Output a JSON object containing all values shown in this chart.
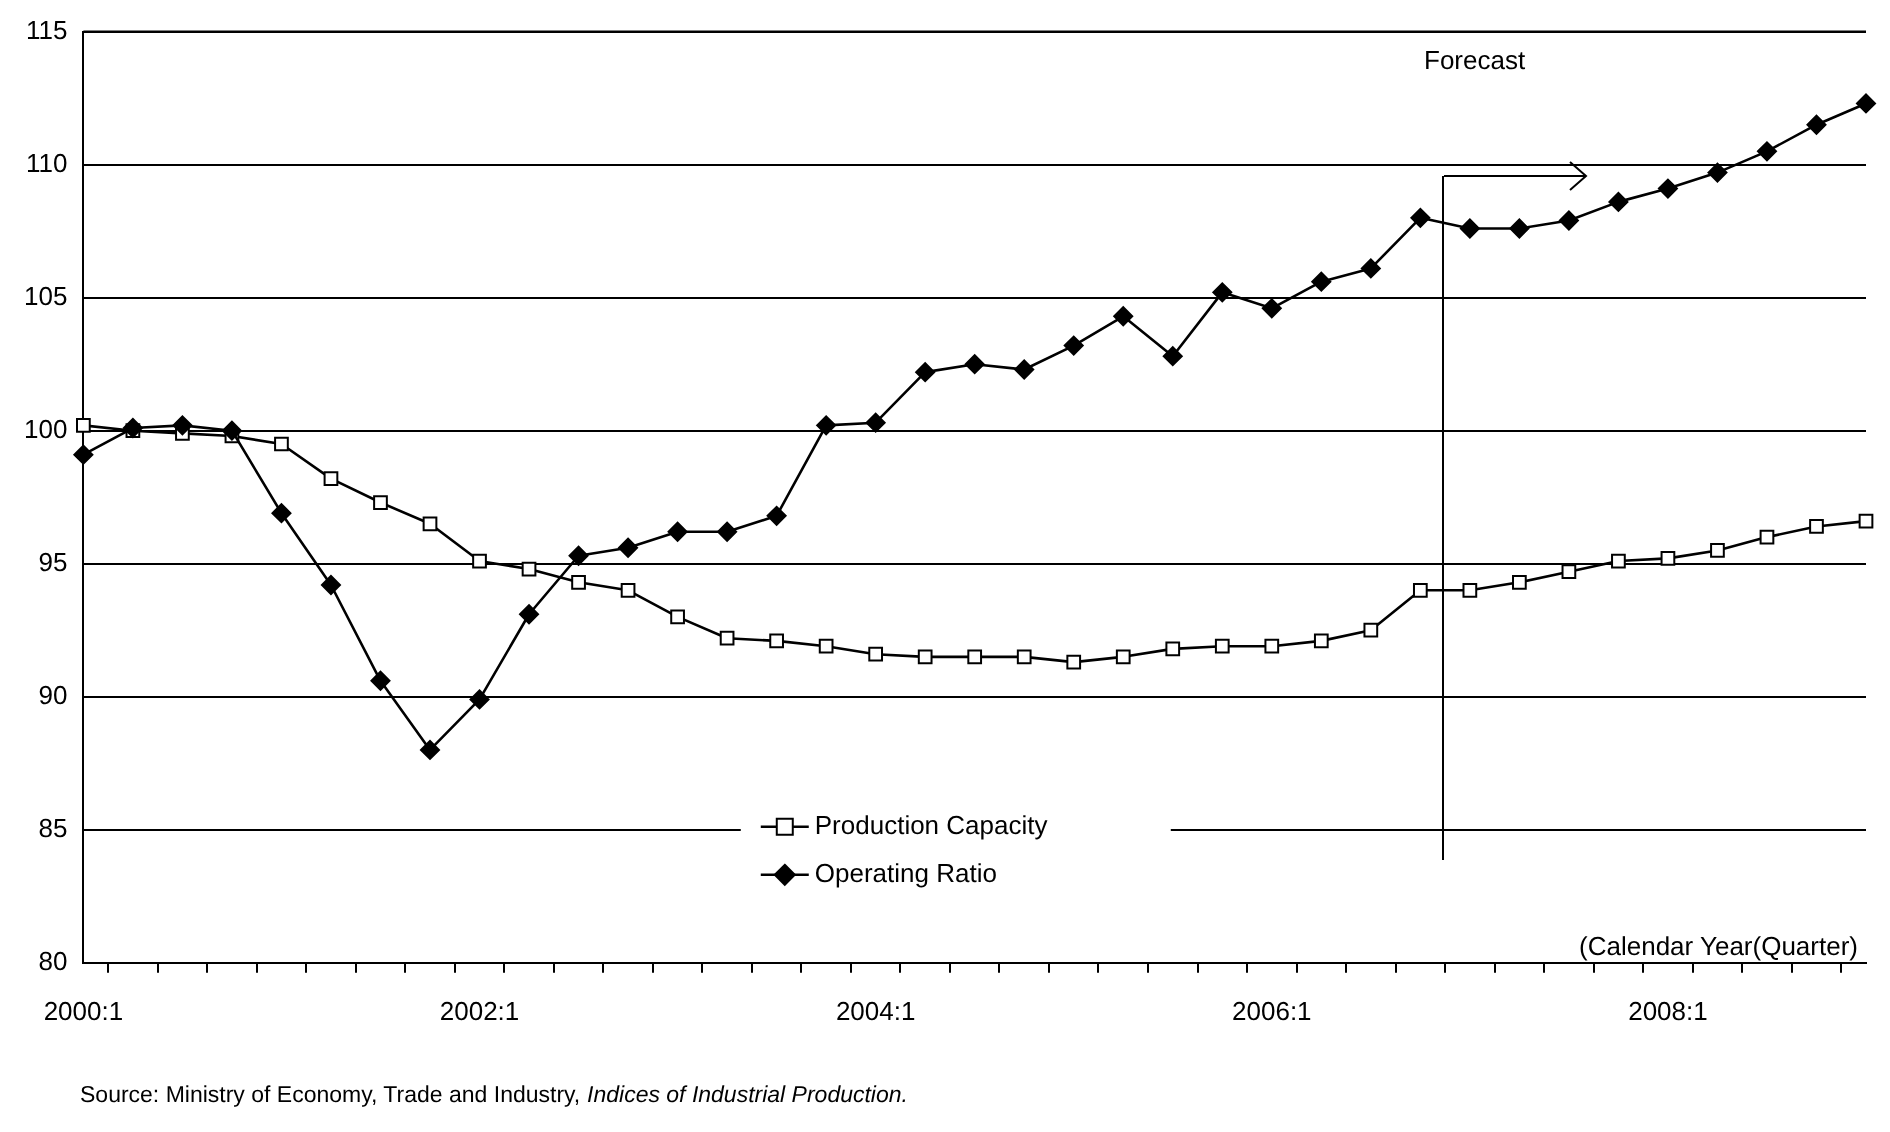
{
  "chart_data": {
    "type": "line",
    "categories": [
      "2000:1",
      null,
      null,
      null,
      null,
      null,
      null,
      null,
      "2002:1",
      null,
      null,
      null,
      null,
      null,
      null,
      null,
      "2004:1",
      null,
      null,
      null,
      null,
      null,
      null,
      null,
      "2006:1",
      null,
      null,
      null,
      null,
      null,
      null,
      null,
      "2008:1",
      null,
      null,
      null,
      null
    ],
    "series": [
      {
        "name": "Production Capacity",
        "color": "#000000",
        "marker": "square",
        "values": [
          100.2,
          100.0,
          99.9,
          99.8,
          99.5,
          98.2,
          97.3,
          96.5,
          95.1,
          94.8,
          94.3,
          94.0,
          93.0,
          92.2,
          92.1,
          91.9,
          91.6,
          91.5,
          91.5,
          91.5,
          91.3,
          91.5,
          91.8,
          91.9,
          91.9,
          92.1,
          92.5,
          94.0,
          94.0,
          94.3,
          94.7,
          95.1,
          95.2,
          95.5,
          96.0,
          96.4,
          96.6
        ]
      },
      {
        "name": "Operating Ratio",
        "color": "#000000",
        "marker": "diamond",
        "values": [
          99.1,
          100.1,
          100.2,
          100.0,
          96.9,
          94.2,
          90.6,
          88.0,
          89.9,
          93.1,
          95.3,
          95.6,
          96.2,
          96.2,
          96.8,
          100.2,
          100.3,
          102.2,
          102.5,
          102.3,
          103.2,
          104.3,
          102.8,
          105.2,
          104.6,
          105.6,
          106.1,
          108.0,
          107.6,
          107.6,
          107.9,
          108.6,
          109.1,
          109.7,
          110.5,
          111.5,
          112.3
        ]
      }
    ],
    "ylim": [
      80,
      115
    ],
    "yticks": [
      80,
      85,
      90,
      95,
      100,
      105,
      110,
      115
    ],
    "grid": "y",
    "legend": "bottom",
    "line_style": "solid",
    "xlabel": "(Calendar Year(Quarter)",
    "annotations": [
      "Forecast",
      "Source: Ministry of Economy, Trade and Industry, $_{}$Indices of Industrial Production."
    ]
  }
}
